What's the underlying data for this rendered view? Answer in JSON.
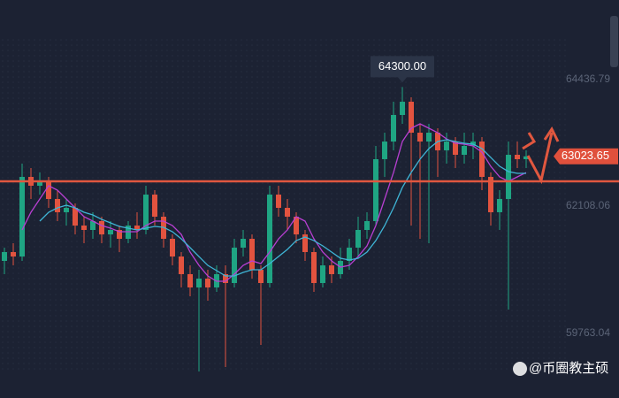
{
  "chart_data": {
    "type": "candlestick",
    "open": [
      61098,
      61261,
      61179,
      62645,
      62482,
      62564,
      62238,
      61994,
      62075,
      61749,
      61668,
      61831,
      61586,
      61668,
      61505,
      61749,
      61668,
      62319,
      61912,
      61505,
      61179,
      60854,
      60609,
      60772,
      60609,
      60854,
      60691,
      61342,
      61505,
      60935,
      60691,
      62319,
      62075,
      61912,
      61586,
      61261,
      60691,
      61016,
      60854,
      61098,
      61342,
      61668,
      61831,
      62971,
      63296,
      63785,
      64029,
      63459,
      63296,
      63459,
      63134,
      63296,
      63052,
      63215,
      63296,
      62645,
      61994,
      62238,
      63052,
      62971
    ],
    "high": [
      61342,
      61424,
      62889,
      62808,
      62726,
      62645,
      62401,
      62238,
      62156,
      61912,
      61994,
      61912,
      61831,
      61749,
      61831,
      61994,
      62482,
      62401,
      61994,
      61586,
      61261,
      61016,
      60935,
      60935,
      61016,
      61016,
      61505,
      61668,
      61586,
      61016,
      62482,
      62482,
      62238,
      61994,
      61668,
      61342,
      61179,
      61179,
      61342,
      61505,
      61912,
      61994,
      63215,
      63459,
      64029,
      64300,
      64111,
      63622,
      63622,
      63541,
      63459,
      63378,
      63459,
      63459,
      63378,
      62726,
      62401,
      63296,
      63296,
      63134
    ],
    "low": [
      60854,
      61016,
      61098,
      62238,
      62319,
      62075,
      61831,
      61749,
      61586,
      61424,
      61505,
      61424,
      61342,
      61261,
      61424,
      61505,
      61586,
      61749,
      61342,
      61016,
      60609,
      60447,
      59062,
      60365,
      60528,
      59144,
      60609,
      61179,
      60772,
      59551,
      60609,
      61912,
      61668,
      61424,
      61098,
      60528,
      60609,
      60691,
      60772,
      60935,
      61179,
      61505,
      61749,
      62645,
      63134,
      63622,
      61749,
      61505,
      61424,
      62645,
      62889,
      62808,
      62889,
      62971,
      62401,
      61749,
      61668,
      60202,
      62808,
      62808
    ],
    "close": [
      61261,
      61179,
      62645,
      62482,
      62564,
      62238,
      61994,
      62075,
      61749,
      61668,
      61831,
      61586,
      61668,
      61505,
      61749,
      61668,
      62319,
      61912,
      61505,
      61179,
      60854,
      60609,
      60772,
      60609,
      60854,
      60691,
      61342,
      61505,
      60935,
      60691,
      62319,
      62075,
      61912,
      61586,
      61261,
      60691,
      61016,
      60854,
      61098,
      61342,
      61668,
      61831,
      62971,
      63296,
      63785,
      64029,
      63459,
      63296,
      63459,
      63134,
      63296,
      63052,
      63215,
      63296,
      62645,
      61994,
      62238,
      63052,
      62971,
      63023.65
    ],
    "up_color": "#1fa583",
    "down_color": "#e2533f",
    "moving_averages": [
      {
        "color": "#b83fd2",
        "values": [
          null,
          null,
          61668,
          61994,
          62238,
          62482,
          62401,
          62238,
          62075,
          61912,
          61831,
          61749,
          61700,
          61635,
          61635,
          61635,
          61749,
          61831,
          61831,
          61749,
          61586,
          61261,
          61016,
          60821,
          60723,
          60723,
          60854,
          61016,
          61098,
          61049,
          61261,
          61505,
          61668,
          61912,
          61831,
          61505,
          61261,
          61098,
          60984,
          61016,
          61179,
          61375,
          61749,
          62238,
          62726,
          63296,
          63541,
          63622,
          63541,
          63459,
          63345,
          63264,
          63248,
          63215,
          63101,
          62840,
          62645,
          62564,
          62645,
          62726
        ]
      },
      {
        "color": "#3fb5d6",
        "values": [
          null,
          null,
          null,
          null,
          61831,
          61994,
          62075,
          62124,
          62075,
          61994,
          61945,
          61863,
          61798,
          61733,
          61700,
          61668,
          61700,
          61733,
          61717,
          61635,
          61505,
          61342,
          61179,
          61016,
          60919,
          60821,
          60821,
          60886,
          60935,
          60935,
          61049,
          61179,
          61310,
          61472,
          61538,
          61472,
          61375,
          61261,
          61147,
          61114,
          61147,
          61261,
          61472,
          61749,
          62075,
          62450,
          62726,
          62971,
          63166,
          63296,
          63329,
          63296,
          63264,
          63248,
          63166,
          63003,
          62840,
          62743,
          62710,
          62710
        ]
      }
    ],
    "ylim": [
      58574,
      65902
    ],
    "yticks": [
      64436.79,
      62108.06,
      59763.04
    ],
    "grid": false,
    "reference_line": {
      "value": 62564,
      "color": "#e0573f"
    },
    "last_price": 63023.65,
    "peak_label": {
      "value": 64300,
      "label": "64300.00"
    }
  },
  "watermark": "@币圈教主硕"
}
